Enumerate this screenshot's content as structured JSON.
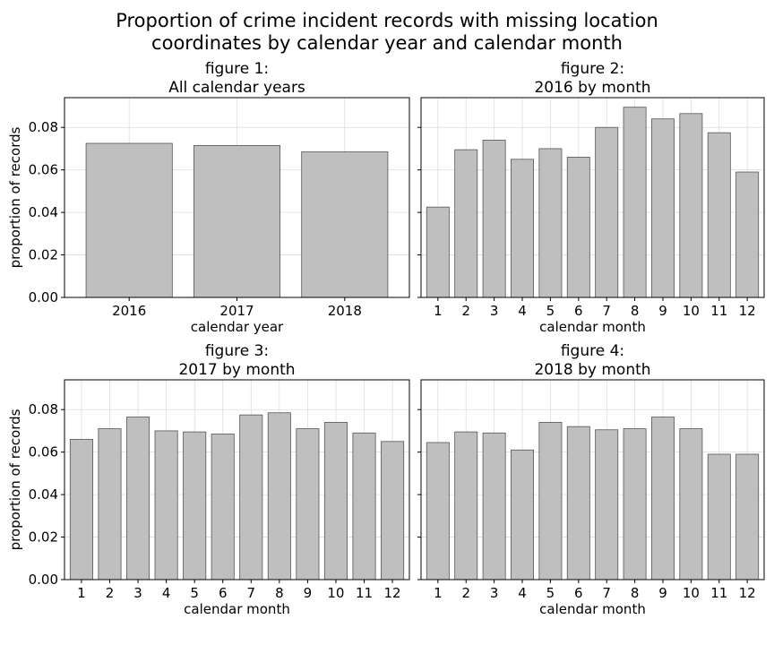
{
  "figure_title_line1": "Proportion of crime incident records with missing location",
  "figure_title_line2": "coordinates by calendar year and calendar month",
  "chart_data": [
    {
      "type": "bar",
      "title_line1": "figure 1:",
      "title_line2": "All calendar years",
      "xlabel": "calendar year",
      "ylabel": "proportion of records",
      "ylim": [
        0,
        0.094
      ],
      "yticks": [
        "0.00",
        "0.02",
        "0.04",
        "0.06",
        "0.08"
      ],
      "grid": true,
      "categories": [
        "2016",
        "2017",
        "2018"
      ],
      "values": [
        0.0725,
        0.0715,
        0.0685
      ],
      "bar_color": "#bfbfbf",
      "edge_color": "#555555"
    },
    {
      "type": "bar",
      "title_line1": "figure 2:",
      "title_line2": "2016 by month",
      "xlabel": "calendar month",
      "ylabel": "",
      "ylim": [
        0,
        0.094
      ],
      "yticks": [
        "",
        "",
        "",
        "",
        ""
      ],
      "grid": true,
      "categories": [
        "1",
        "2",
        "3",
        "4",
        "5",
        "6",
        "7",
        "8",
        "9",
        "10",
        "11",
        "12"
      ],
      "values": [
        0.0425,
        0.0695,
        0.074,
        0.065,
        0.07,
        0.066,
        0.08,
        0.0895,
        0.084,
        0.0865,
        0.0775,
        0.059
      ],
      "bar_color": "#bfbfbf",
      "edge_color": "#555555"
    },
    {
      "type": "bar",
      "title_line1": "figure 3:",
      "title_line2": "2017 by month",
      "xlabel": "calendar month",
      "ylabel": "proportion of records",
      "ylim": [
        0,
        0.094
      ],
      "yticks": [
        "0.00",
        "0.02",
        "0.04",
        "0.06",
        "0.08"
      ],
      "grid": true,
      "categories": [
        "1",
        "2",
        "3",
        "4",
        "5",
        "6",
        "7",
        "8",
        "9",
        "10",
        "11",
        "12"
      ],
      "values": [
        0.066,
        0.071,
        0.0765,
        0.07,
        0.0695,
        0.0685,
        0.0775,
        0.0785,
        0.071,
        0.074,
        0.069,
        0.065
      ],
      "bar_color": "#bfbfbf",
      "edge_color": "#555555"
    },
    {
      "type": "bar",
      "title_line1": "figure 4:",
      "title_line2": "2018 by month",
      "xlabel": "calendar month",
      "ylabel": "",
      "ylim": [
        0,
        0.094
      ],
      "yticks": [
        "",
        "",
        "",
        "",
        ""
      ],
      "grid": true,
      "categories": [
        "1",
        "2",
        "3",
        "4",
        "5",
        "6",
        "7",
        "8",
        "9",
        "10",
        "11",
        "12"
      ],
      "values": [
        0.0645,
        0.0695,
        0.069,
        0.061,
        0.074,
        0.072,
        0.0705,
        0.071,
        0.0765,
        0.071,
        0.059,
        0.059
      ],
      "bar_color": "#bfbfbf",
      "edge_color": "#555555"
    }
  ]
}
